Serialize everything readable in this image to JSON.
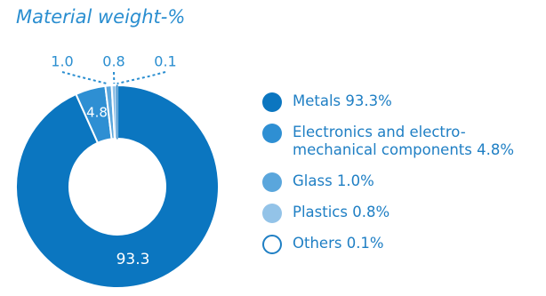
{
  "chart_data": {
    "type": "pie",
    "subtype": "donut",
    "title": "Material weight-%",
    "slices": [
      {
        "label": "Metals",
        "value": 93.3,
        "value_label": "93.3",
        "color": "#0b76c0"
      },
      {
        "label": "Electronics and electro-mechanical components",
        "value": 4.8,
        "value_label": "4.8",
        "color": "#2e8fd3"
      },
      {
        "label": "Glass",
        "value": 1.0,
        "value_label": "1.0",
        "color": "#5aa6dc"
      },
      {
        "label": "Plastics",
        "value": 0.8,
        "value_label": "0.8",
        "color": "#93c3e8"
      },
      {
        "label": "Others",
        "value": 0.1,
        "value_label": "0.1",
        "color": "#ffffff"
      }
    ],
    "legend": [
      {
        "text": "Metals 93.3%"
      },
      {
        "text": "Electronics and electro-",
        "text2": "mechanical components 4.8%"
      },
      {
        "text": "Glass 1.0%"
      },
      {
        "text": "Plastics 0.8%"
      },
      {
        "text": "Others 0.1%"
      }
    ],
    "legend_placement": "right"
  }
}
